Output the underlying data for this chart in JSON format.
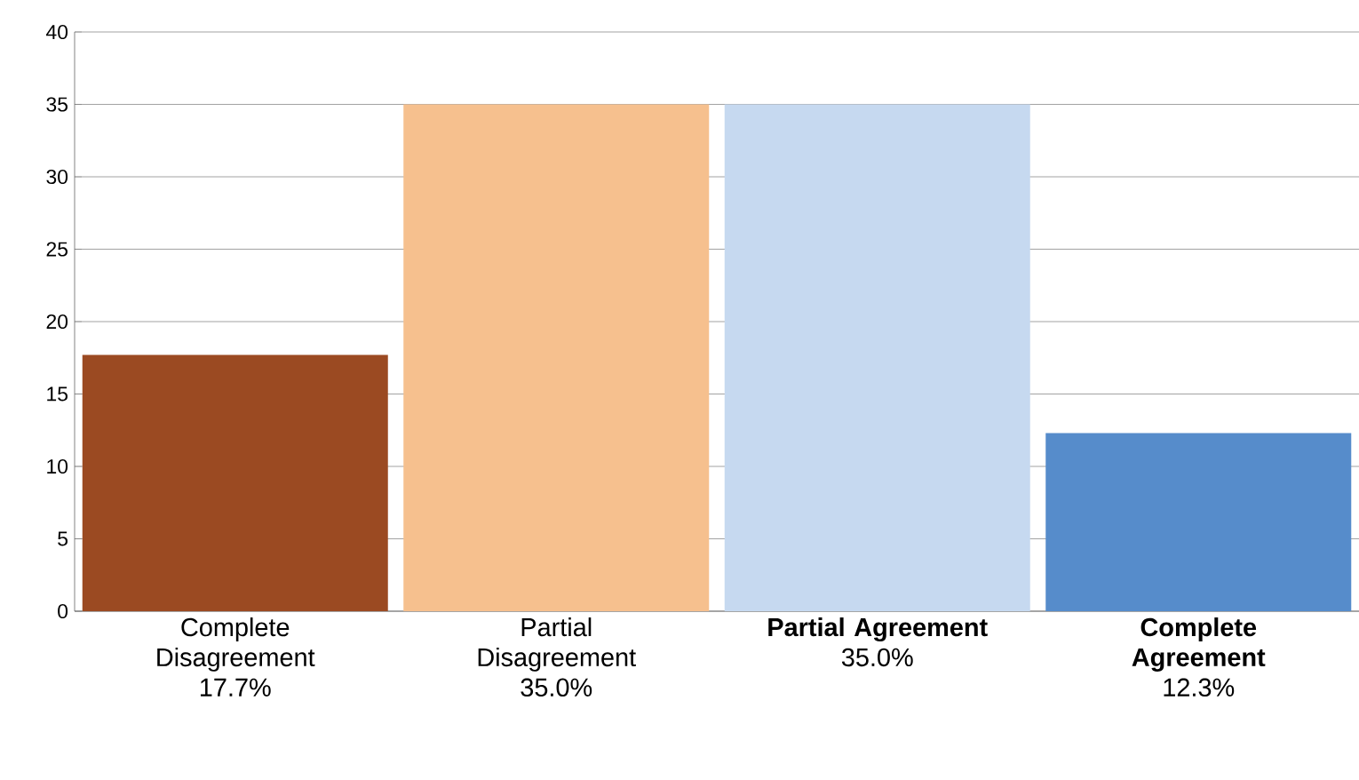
{
  "chart_data": {
    "type": "bar",
    "categories": [
      "Complete Disagreement",
      "Partial Disagreement",
      "**Partial Agreement**",
      "**Complete Agreement**"
    ],
    "values": [
      17.7,
      35.0,
      35.0,
      12.3
    ],
    "value_labels": [
      "17.7%",
      "35.0%",
      "35.0%",
      "12.3%"
    ],
    "colors": [
      "#9b4a22",
      "#f6c08e",
      "#c6d9f0",
      "#568ccb"
    ],
    "ylim": [
      0,
      40
    ],
    "yticks": [
      0,
      5,
      10,
      15,
      20,
      25,
      30,
      35,
      40
    ],
    "grid": "y"
  }
}
